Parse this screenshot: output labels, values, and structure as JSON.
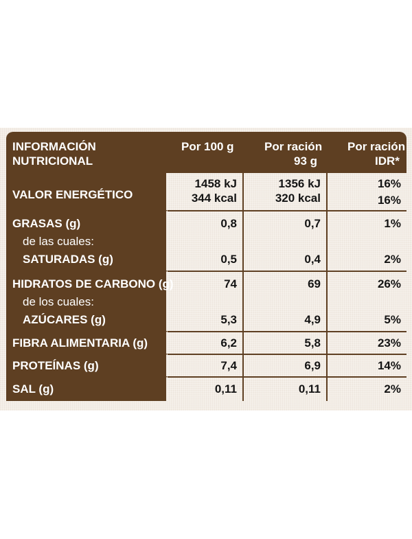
{
  "header": {
    "title_line1": "INFORMACIÓN",
    "title_line2": "NUTRICIONAL",
    "col1": "Por 100 g",
    "col2_line1": "Por ración",
    "col2_line2": "93 g",
    "col3_line1": "Por ración",
    "col3_line2": "IDR*"
  },
  "rows": {
    "energia": {
      "label": "VALOR ENERGÉTICO",
      "v1a": "1458 kJ",
      "v1b": "344 kcal",
      "v2a": "1356 kJ",
      "v2b": "320 kcal",
      "v3a": "16%",
      "v3b": "16%"
    },
    "grasas": {
      "label": "GRASAS (g)",
      "sub": "de las cuales:",
      "sub2": "SATURADAS (g)",
      "v1": "0,8",
      "v2": "0,7",
      "v3": "1%",
      "s1": "0,5",
      "s2": "0,4",
      "s3": "2%"
    },
    "hidratos": {
      "label": "HIDRATOS DE CARBONO (g)",
      "sub": "de los cuales:",
      "sub2": "AZÚCARES (g)",
      "v1": "74",
      "v2": "69",
      "v3": "26%",
      "s1": "5,3",
      "s2": "4,9",
      "s3": "5%"
    },
    "fibra": {
      "label": "FIBRA ALIMENTARIA (g)",
      "v1": "6,2",
      "v2": "5,8",
      "v3": "23%"
    },
    "proteinas": {
      "label": "PROTEÍNAS (g)",
      "v1": "7,4",
      "v2": "6,9",
      "v3": "14%"
    },
    "sal": {
      "label": "SAL (g)",
      "v1": "0,11",
      "v2": "0,11",
      "v3": "2%"
    }
  },
  "colors": {
    "brown": "#5e3f22",
    "background": "#f3ede6"
  }
}
